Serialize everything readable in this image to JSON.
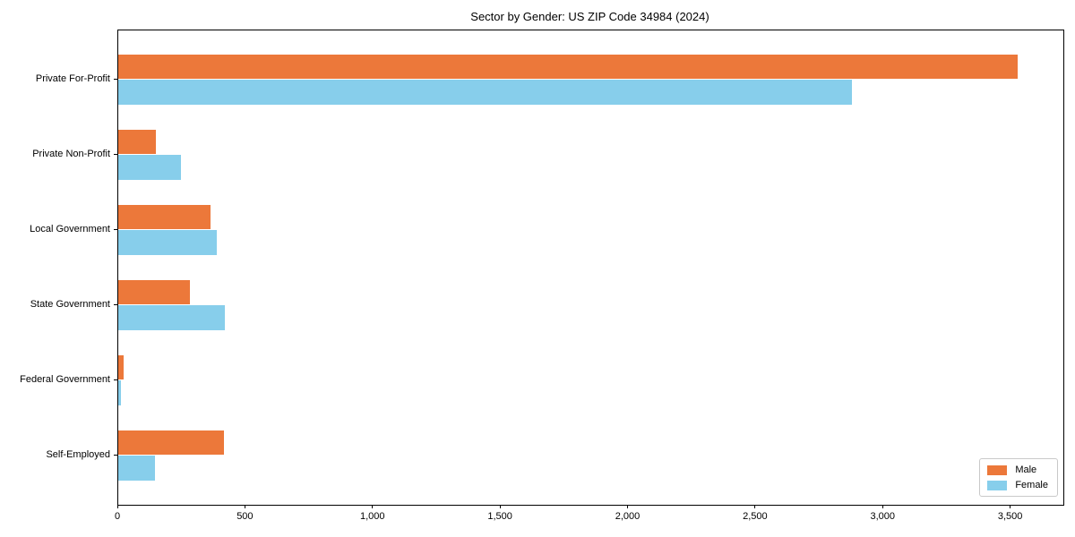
{
  "title": "Sector by Gender: US ZIP Code 34984 (2024)",
  "chart_data": {
    "type": "bar",
    "orientation": "horizontal",
    "title": "Sector by Gender: US ZIP Code 34984 (2024)",
    "xlabel": "",
    "ylabel": "",
    "categories": [
      "Private For-Profit",
      "Private Non-Profit",
      "Local Government",
      "State Government",
      "Federal Government",
      "Self-Employed"
    ],
    "series": [
      {
        "name": "Male",
        "color": "#ec783a",
        "values": [
          3525,
          148,
          360,
          280,
          21,
          413
        ]
      },
      {
        "name": "Female",
        "color": "#87ceeb",
        "values": [
          2875,
          247,
          387,
          419,
          11,
          144
        ]
      }
    ],
    "xlim": [
      0,
      3705
    ],
    "xticks": [
      0,
      500,
      1000,
      1500,
      2000,
      2500,
      3000,
      3500
    ],
    "xtick_labels": [
      "0",
      "500",
      "1,000",
      "1,500",
      "2,000",
      "2,500",
      "3,000",
      "3,500"
    ],
    "legend_position": "lower right",
    "grid": false,
    "axis_color": "#000000"
  }
}
